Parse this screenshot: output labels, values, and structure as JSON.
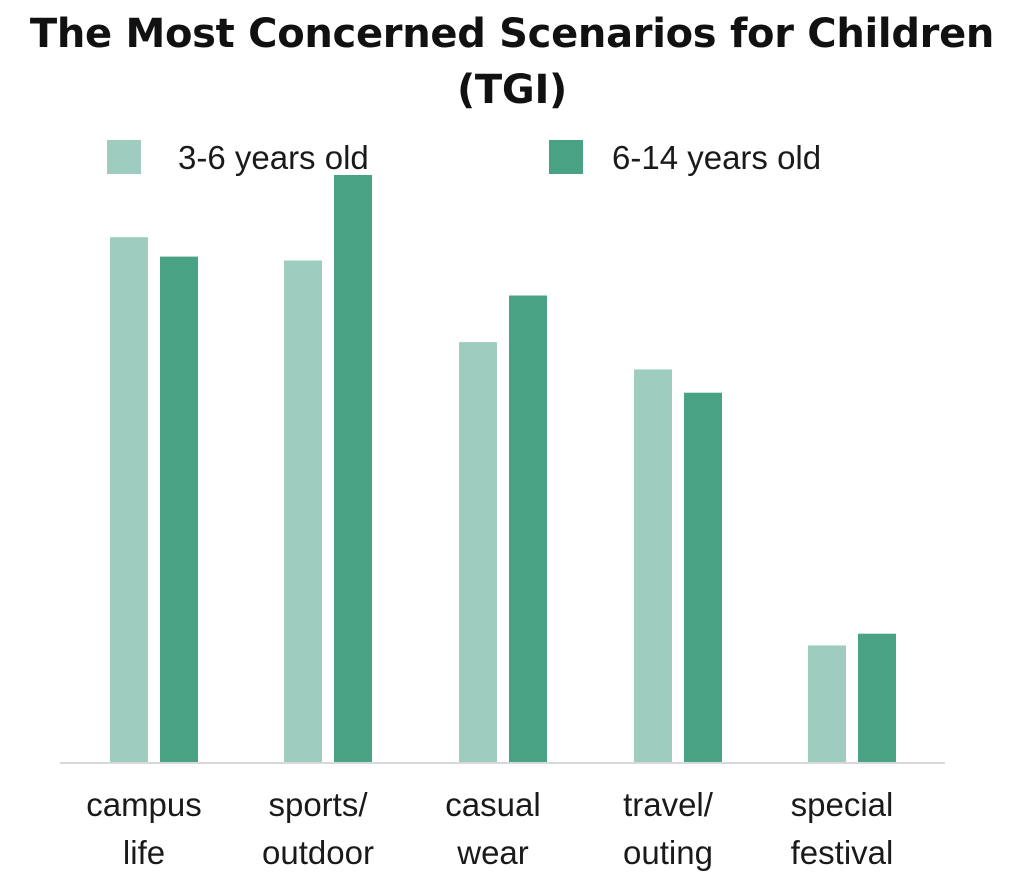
{
  "chart_data": {
    "type": "bar",
    "title": "The Most Concerned Scenarios for Children (TGI)",
    "categories": [
      [
        "campus",
        "life"
      ],
      [
        "sports/",
        "outdoor"
      ],
      [
        "casual",
        "wear"
      ],
      [
        "travel/",
        "outing"
      ],
      [
        "special",
        "festival"
      ]
    ],
    "series": [
      {
        "name": "3-6 years old",
        "color": "#9ecdbf",
        "values": [
          135,
          129,
          108,
          101,
          30
        ]
      },
      {
        "name": "6-14 years old",
        "color": "#48a283",
        "values": [
          130,
          151,
          120,
          95,
          33
        ]
      }
    ],
    "ylim": [
      0,
      160
    ],
    "grid": false,
    "legend": "top"
  }
}
